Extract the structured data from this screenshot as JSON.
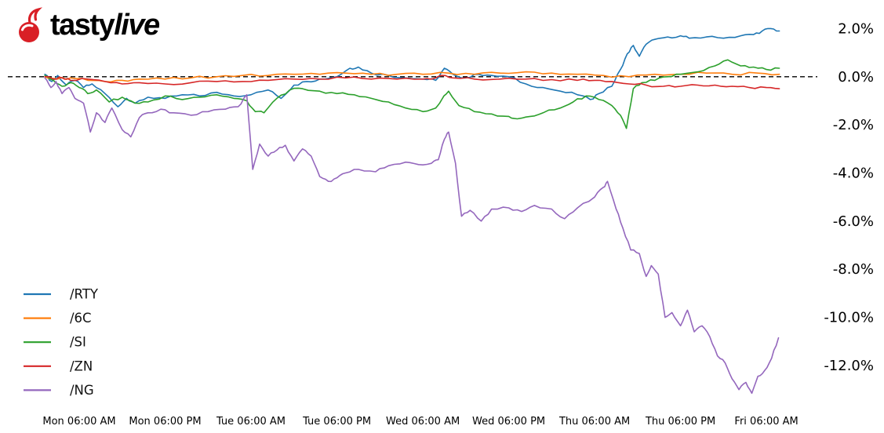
{
  "logo": {
    "text_bold": "tasty",
    "text_italic": "live",
    "cherry_color": "#d91f26"
  },
  "chart_data": {
    "type": "line",
    "title": "",
    "grid": false,
    "legend_position": "lower-left",
    "reference_line": {
      "value": 0,
      "style": "dashed",
      "color": "#000000"
    },
    "x_axis": {
      "tick_labels": [
        "Mon 06:00 AM",
        "Mon 06:00 PM",
        "Tue 06:00 AM",
        "Tue 06:00 PM",
        "Wed 06:00 AM",
        "Wed 06:00 PM",
        "Thu 06:00 AM",
        "Thu 06:00 PM",
        "Fri 06:00 AM"
      ],
      "tick_positions": [
        0,
        1,
        2,
        3,
        4,
        5,
        6,
        7,
        8
      ],
      "range": [
        -0.42,
        8.3
      ]
    },
    "y_axis": {
      "unit": "%",
      "range": [
        2.6,
        -13.5
      ],
      "ticks": [
        {
          "value": 2,
          "label": "2.0%"
        },
        {
          "value": 0,
          "label": "0.0%"
        },
        {
          "value": -2,
          "label": "-2.0%"
        },
        {
          "value": -4,
          "label": "-4.0%"
        },
        {
          "value": -6,
          "label": "-6.0%"
        },
        {
          "value": -8,
          "label": "-8.0%"
        },
        {
          "value": -10,
          "label": "-10.0%"
        },
        {
          "value": -12,
          "label": "-12.0%"
        }
      ]
    },
    "legend": [
      "/RTY",
      "/6C",
      "/SI",
      "/ZN",
      "/NG"
    ],
    "series": [
      {
        "name": "/RTY",
        "color": "#1f77b4",
        "points": [
          [
            -0.4,
            0.1
          ],
          [
            -0.32,
            -0.2
          ],
          [
            -0.25,
            0.05
          ],
          [
            -0.15,
            -0.35
          ],
          [
            -0.05,
            -0.15
          ],
          [
            0.05,
            -0.45
          ],
          [
            0.15,
            -0.3
          ],
          [
            0.3,
            -0.7
          ],
          [
            0.45,
            -1.25
          ],
          [
            0.55,
            -0.9
          ],
          [
            0.65,
            -1.1
          ],
          [
            0.8,
            -0.85
          ],
          [
            1.0,
            -0.9
          ],
          [
            1.2,
            -0.75
          ],
          [
            1.4,
            -0.8
          ],
          [
            1.6,
            -0.65
          ],
          [
            1.8,
            -0.8
          ],
          [
            2.0,
            -0.75
          ],
          [
            2.2,
            -0.55
          ],
          [
            2.35,
            -0.9
          ],
          [
            2.5,
            -0.35
          ],
          [
            2.65,
            -0.2
          ],
          [
            2.8,
            -0.1
          ],
          [
            3.0,
            0.0
          ],
          [
            3.15,
            0.35
          ],
          [
            3.25,
            0.4
          ],
          [
            3.4,
            0.15
          ],
          [
            3.6,
            0.05
          ],
          [
            3.8,
            -0.05
          ],
          [
            4.0,
            -0.1
          ],
          [
            4.15,
            -0.15
          ],
          [
            4.25,
            0.35
          ],
          [
            4.35,
            0.1
          ],
          [
            4.5,
            -0.05
          ],
          [
            4.65,
            0.1
          ],
          [
            4.8,
            0.05
          ],
          [
            5.0,
            0.0
          ],
          [
            5.2,
            -0.3
          ],
          [
            5.4,
            -0.45
          ],
          [
            5.6,
            -0.6
          ],
          [
            5.8,
            -0.75
          ],
          [
            5.95,
            -0.95
          ],
          [
            6.05,
            -0.7
          ],
          [
            6.2,
            -0.4
          ],
          [
            6.3,
            0.3
          ],
          [
            6.38,
            0.95
          ],
          [
            6.45,
            1.3
          ],
          [
            6.52,
            0.85
          ],
          [
            6.6,
            1.35
          ],
          [
            6.7,
            1.55
          ],
          [
            6.85,
            1.65
          ],
          [
            7.0,
            1.7
          ],
          [
            7.1,
            1.6
          ],
          [
            7.3,
            1.65
          ],
          [
            7.5,
            1.6
          ],
          [
            7.7,
            1.7
          ],
          [
            7.85,
            1.75
          ],
          [
            7.95,
            1.9
          ],
          [
            8.05,
            2.0
          ],
          [
            8.15,
            1.9
          ]
        ]
      },
      {
        "name": "/6C",
        "color": "#ff7f0e",
        "points": [
          [
            -0.4,
            0.0
          ],
          [
            -0.25,
            -0.1
          ],
          [
            -0.1,
            -0.05
          ],
          [
            0.1,
            -0.15
          ],
          [
            0.3,
            -0.2
          ],
          [
            0.5,
            -0.15
          ],
          [
            0.7,
            -0.1
          ],
          [
            1.0,
            -0.1
          ],
          [
            1.3,
            -0.05
          ],
          [
            1.6,
            0.0
          ],
          [
            1.9,
            0.05
          ],
          [
            2.2,
            0.05
          ],
          [
            2.5,
            0.1
          ],
          [
            2.8,
            0.1
          ],
          [
            3.1,
            0.15
          ],
          [
            3.4,
            0.1
          ],
          [
            3.7,
            0.1
          ],
          [
            4.0,
            0.1
          ],
          [
            4.3,
            0.15
          ],
          [
            4.6,
            0.1
          ],
          [
            4.9,
            0.15
          ],
          [
            5.2,
            0.2
          ],
          [
            5.5,
            0.15
          ],
          [
            5.8,
            0.1
          ],
          [
            6.1,
            0.05
          ],
          [
            6.4,
            0.0
          ],
          [
            6.7,
            0.1
          ],
          [
            7.0,
            0.1
          ],
          [
            7.3,
            0.15
          ],
          [
            7.6,
            0.1
          ],
          [
            7.9,
            0.15
          ],
          [
            8.15,
            0.1
          ]
        ]
      },
      {
        "name": "/SI",
        "color": "#2ca02c",
        "points": [
          [
            -0.4,
            0.05
          ],
          [
            -0.3,
            -0.15
          ],
          [
            -0.2,
            -0.4
          ],
          [
            -0.1,
            -0.25
          ],
          [
            0.0,
            -0.45
          ],
          [
            0.1,
            -0.7
          ],
          [
            0.2,
            -0.55
          ],
          [
            0.35,
            -1.05
          ],
          [
            0.5,
            -0.85
          ],
          [
            0.65,
            -1.1
          ],
          [
            0.8,
            -1.05
          ],
          [
            1.0,
            -0.8
          ],
          [
            1.2,
            -0.95
          ],
          [
            1.4,
            -0.85
          ],
          [
            1.6,
            -0.75
          ],
          [
            1.8,
            -0.9
          ],
          [
            1.95,
            -1.0
          ],
          [
            2.05,
            -1.45
          ],
          [
            2.15,
            -1.5
          ],
          [
            2.3,
            -0.9
          ],
          [
            2.45,
            -0.55
          ],
          [
            2.6,
            -0.5
          ],
          [
            2.8,
            -0.6
          ],
          [
            3.0,
            -0.7
          ],
          [
            3.2,
            -0.75
          ],
          [
            3.4,
            -0.9
          ],
          [
            3.6,
            -1.05
          ],
          [
            3.8,
            -1.3
          ],
          [
            4.0,
            -1.45
          ],
          [
            4.15,
            -1.3
          ],
          [
            4.22,
            -0.95
          ],
          [
            4.3,
            -0.6
          ],
          [
            4.42,
            -1.2
          ],
          [
            4.6,
            -1.45
          ],
          [
            4.8,
            -1.55
          ],
          [
            5.0,
            -1.65
          ],
          [
            5.1,
            -1.75
          ],
          [
            5.25,
            -1.65
          ],
          [
            5.4,
            -1.5
          ],
          [
            5.6,
            -1.3
          ],
          [
            5.75,
            -1.05
          ],
          [
            5.9,
            -0.8
          ],
          [
            6.05,
            -0.95
          ],
          [
            6.2,
            -1.2
          ],
          [
            6.3,
            -1.6
          ],
          [
            6.37,
            -2.15
          ],
          [
            6.45,
            -0.5
          ],
          [
            6.55,
            -0.25
          ],
          [
            6.7,
            -0.15
          ],
          [
            6.85,
            0.0
          ],
          [
            7.0,
            0.1
          ],
          [
            7.2,
            0.2
          ],
          [
            7.4,
            0.45
          ],
          [
            7.55,
            0.7
          ],
          [
            7.7,
            0.45
          ],
          [
            7.85,
            0.4
          ],
          [
            8.0,
            0.3
          ],
          [
            8.15,
            0.35
          ]
        ]
      },
      {
        "name": "/ZN",
        "color": "#d62728",
        "points": [
          [
            -0.4,
            0.0
          ],
          [
            -0.3,
            -0.1
          ],
          [
            -0.2,
            -0.05
          ],
          [
            -0.1,
            -0.15
          ],
          [
            0.1,
            -0.1
          ],
          [
            0.3,
            -0.2
          ],
          [
            0.5,
            -0.3
          ],
          [
            0.7,
            -0.25
          ],
          [
            1.0,
            -0.3
          ],
          [
            1.3,
            -0.25
          ],
          [
            1.6,
            -0.2
          ],
          [
            1.9,
            -0.2
          ],
          [
            2.2,
            -0.15
          ],
          [
            2.5,
            -0.1
          ],
          [
            2.8,
            -0.1
          ],
          [
            3.1,
            -0.05
          ],
          [
            3.4,
            -0.1
          ],
          [
            3.7,
            -0.1
          ],
          [
            4.0,
            -0.1
          ],
          [
            4.15,
            -0.05
          ],
          [
            4.22,
            0.05
          ],
          [
            4.35,
            -0.05
          ],
          [
            4.6,
            -0.1
          ],
          [
            4.9,
            -0.1
          ],
          [
            5.2,
            -0.1
          ],
          [
            5.5,
            -0.12
          ],
          [
            5.8,
            -0.15
          ],
          [
            6.0,
            -0.15
          ],
          [
            6.2,
            -0.2
          ],
          [
            6.4,
            -0.3
          ],
          [
            6.6,
            -0.35
          ],
          [
            6.8,
            -0.4
          ],
          [
            7.0,
            -0.4
          ],
          [
            7.2,
            -0.35
          ],
          [
            7.4,
            -0.35
          ],
          [
            7.6,
            -0.4
          ],
          [
            7.8,
            -0.45
          ],
          [
            8.0,
            -0.45
          ],
          [
            8.15,
            -0.5
          ]
        ]
      },
      {
        "name": "/NG",
        "color": "#9467bd",
        "points": [
          [
            -0.4,
            -0.05
          ],
          [
            -0.33,
            -0.45
          ],
          [
            -0.27,
            -0.2
          ],
          [
            -0.2,
            -0.7
          ],
          [
            -0.12,
            -0.45
          ],
          [
            -0.05,
            -0.9
          ],
          [
            0.05,
            -1.1
          ],
          [
            0.13,
            -2.3
          ],
          [
            0.2,
            -1.5
          ],
          [
            0.3,
            -1.9
          ],
          [
            0.38,
            -1.3
          ],
          [
            0.5,
            -2.2
          ],
          [
            0.6,
            -2.5
          ],
          [
            0.7,
            -1.7
          ],
          [
            0.8,
            -1.5
          ],
          [
            0.95,
            -1.35
          ],
          [
            1.1,
            -1.5
          ],
          [
            1.3,
            -1.6
          ],
          [
            1.5,
            -1.45
          ],
          [
            1.7,
            -1.35
          ],
          [
            1.85,
            -1.25
          ],
          [
            1.95,
            -0.75
          ],
          [
            2.02,
            -3.85
          ],
          [
            2.1,
            -2.8
          ],
          [
            2.2,
            -3.3
          ],
          [
            2.3,
            -3.05
          ],
          [
            2.4,
            -2.85
          ],
          [
            2.5,
            -3.5
          ],
          [
            2.6,
            -3.0
          ],
          [
            2.7,
            -3.3
          ],
          [
            2.8,
            -4.15
          ],
          [
            2.9,
            -4.35
          ],
          [
            3.0,
            -4.2
          ],
          [
            3.1,
            -4.0
          ],
          [
            3.25,
            -3.85
          ],
          [
            3.45,
            -3.95
          ],
          [
            3.6,
            -3.7
          ],
          [
            3.8,
            -3.55
          ],
          [
            3.95,
            -3.65
          ],
          [
            4.1,
            -3.6
          ],
          [
            4.18,
            -3.45
          ],
          [
            4.25,
            -2.6
          ],
          [
            4.3,
            -2.3
          ],
          [
            4.38,
            -3.6
          ],
          [
            4.45,
            -5.8
          ],
          [
            4.55,
            -5.55
          ],
          [
            4.68,
            -6.0
          ],
          [
            4.8,
            -5.5
          ],
          [
            5.0,
            -5.45
          ],
          [
            5.15,
            -5.6
          ],
          [
            5.3,
            -5.35
          ],
          [
            5.5,
            -5.5
          ],
          [
            5.65,
            -5.9
          ],
          [
            5.8,
            -5.45
          ],
          [
            6.0,
            -5.0
          ],
          [
            6.1,
            -4.6
          ],
          [
            6.15,
            -4.35
          ],
          [
            6.25,
            -5.5
          ],
          [
            6.33,
            -6.3
          ],
          [
            6.42,
            -7.2
          ],
          [
            6.52,
            -7.35
          ],
          [
            6.6,
            -8.3
          ],
          [
            6.66,
            -7.85
          ],
          [
            6.74,
            -8.2
          ],
          [
            6.82,
            -10.0
          ],
          [
            6.9,
            -9.8
          ],
          [
            7.0,
            -10.35
          ],
          [
            7.08,
            -9.7
          ],
          [
            7.16,
            -10.6
          ],
          [
            7.25,
            -10.35
          ],
          [
            7.34,
            -10.8
          ],
          [
            7.43,
            -11.6
          ],
          [
            7.52,
            -11.9
          ],
          [
            7.6,
            -12.55
          ],
          [
            7.68,
            -13.0
          ],
          [
            7.76,
            -12.7
          ],
          [
            7.83,
            -13.15
          ],
          [
            7.9,
            -12.45
          ],
          [
            7.98,
            -12.2
          ],
          [
            8.06,
            -11.7
          ],
          [
            8.14,
            -10.85
          ]
        ]
      }
    ]
  }
}
